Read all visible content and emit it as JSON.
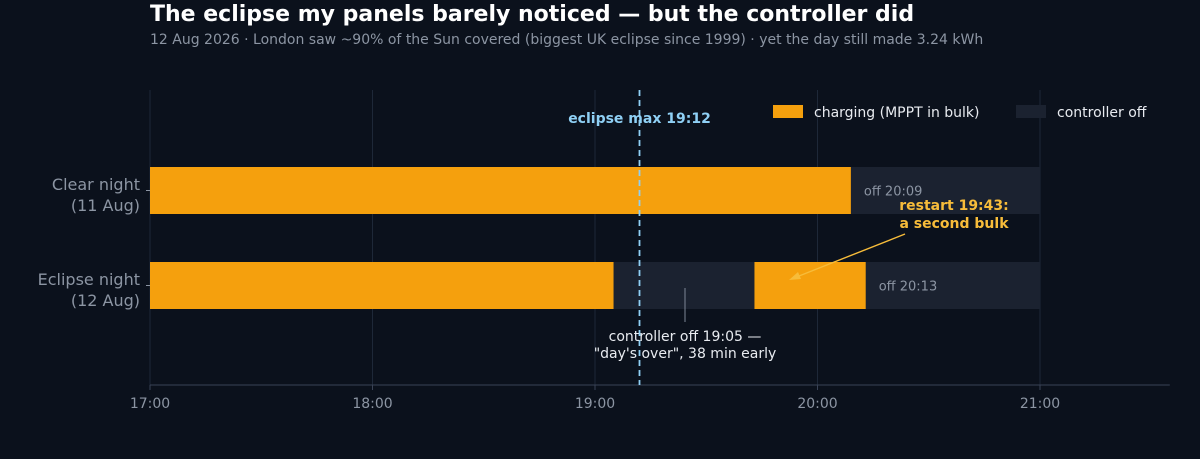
{
  "colors": {
    "background": "#0b111c",
    "charging": "#f5a00d",
    "off_track": "#1b2230",
    "eclipse_line": "#8fd0f5",
    "annotation_accent": "#f7bc3a",
    "text_primary": "#e8ebf0",
    "text_muted": "#8c95a3"
  },
  "chart_data": {
    "type": "bar",
    "orientation": "horizontal",
    "title": "The eclipse my panels barely noticed — but the controller did",
    "subtitle": "12 Aug 2026  ·  London saw ~90% of the Sun covered (biggest UK eclipse since 1999)  ·  yet the day still made 3.24 kWh",
    "xlim": [
      "17:00",
      "21:35"
    ],
    "x_ticks": [
      "17:00",
      "18:00",
      "19:00",
      "20:00",
      "21:00"
    ],
    "grid": true,
    "legend_position": "top-right",
    "legend": [
      {
        "label": "charging (MPPT in bulk)",
        "color": "#f5a00d"
      },
      {
        "label": "controller off",
        "color": "#1b2230"
      }
    ],
    "rows": [
      {
        "label_line1": "Clear night",
        "label_line2": "(11 Aug)",
        "off_track": {
          "start": "17:00",
          "end": "21:00"
        },
        "charging": [
          {
            "start": "17:00",
            "end": "20:09"
          }
        ],
        "end_label": "off 20:09"
      },
      {
        "label_line1": "Eclipse night",
        "label_line2": "(12 Aug)",
        "off_track": {
          "start": "17:00",
          "end": "21:00"
        },
        "charging": [
          {
            "start": "17:00",
            "end": "19:05"
          },
          {
            "start": "19:43",
            "end": "20:13"
          }
        ],
        "end_label": "off 20:13"
      }
    ],
    "eclipse_max": {
      "time": "19:12",
      "label": "eclipse max 19:12"
    },
    "annotations": {
      "restart": {
        "line1": "restart 19:43:",
        "line2": "a second bulk"
      },
      "controller_off": {
        "line1": "controller off 19:05 —",
        "line2": "\"day's over\", 38 min early"
      }
    }
  }
}
